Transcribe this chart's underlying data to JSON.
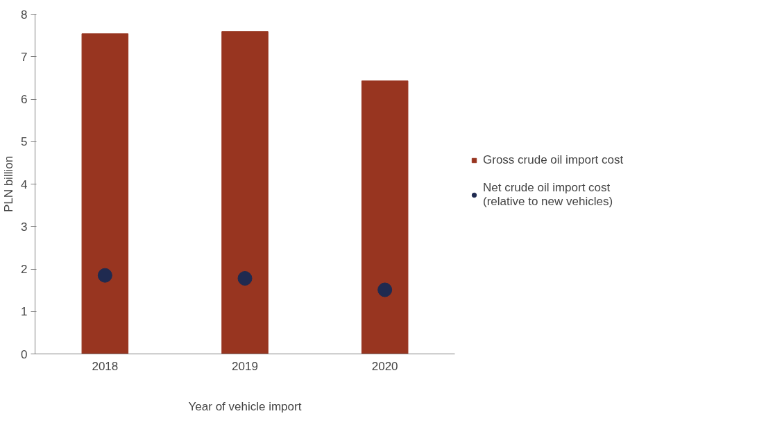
{
  "chart_data": {
    "type": "bar",
    "xlabel": "Year of vehicle import",
    "ylabel": "PLN billion",
    "categories": [
      "2018",
      "2019",
      "2020"
    ],
    "series": [
      {
        "name": "Gross crude oil import cost",
        "color": "#983520",
        "values": [
          7.54,
          7.59,
          6.43
        ]
      },
      {
        "name": "Net crude oil import cost (relative to new vehicles)",
        "type": "scatter",
        "color": "#1f2a50",
        "values": [
          1.85,
          1.78,
          1.51
        ]
      }
    ],
    "ylim": [
      0,
      8
    ],
    "yticks": [
      0,
      1,
      2,
      3,
      4,
      5,
      6,
      7,
      8
    ],
    "grid": false,
    "legend": "right",
    "marker": "circle"
  }
}
